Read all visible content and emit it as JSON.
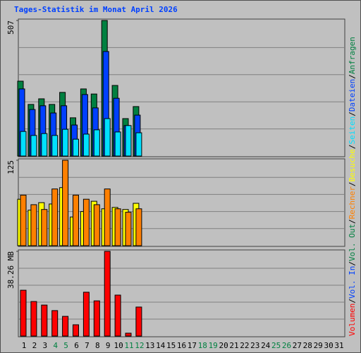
{
  "chart_data": {
    "type": "bar",
    "title": "Tages-Statistik im Monat April 2026",
    "categories": [
      "1",
      "2",
      "3",
      "4",
      "5",
      "6",
      "7",
      "8",
      "9",
      "10",
      "11",
      "12",
      "13",
      "14",
      "15",
      "16",
      "17",
      "18",
      "19",
      "20",
      "21",
      "22",
      "23",
      "24",
      "25",
      "26",
      "27",
      "28",
      "29",
      "30",
      "31"
    ],
    "highlight_categories": [
      "4",
      "5",
      "11",
      "12",
      "18",
      "19",
      "25",
      "26"
    ],
    "highlight_color": "#008040",
    "grid": true,
    "grid_divisions": 5,
    "legend_separator": "/",
    "panels": [
      {
        "ylim": [
          0,
          507
        ],
        "yticks": [
          507
        ],
        "series": [
          {
            "name": "Anfragen",
            "color": "#008040",
            "values": [
              280,
              193,
              214,
              193,
              238,
              143,
              251,
              232,
              507,
              264,
              140,
              185,
              null,
              null,
              null,
              null,
              null,
              null,
              null,
              null,
              null,
              null,
              null,
              null,
              null,
              null,
              null,
              null,
              null,
              null,
              null
            ]
          },
          {
            "name": "Dateien",
            "color": "#0040ff",
            "values": [
              251,
              174,
              188,
              161,
              188,
              116,
              230,
              180,
              391,
              216,
              114,
              153,
              null,
              null,
              null,
              null,
              null,
              null,
              null,
              null,
              null,
              null,
              null,
              null,
              null,
              null,
              null,
              null,
              null,
              null,
              null
            ]
          },
          {
            "name": "Seiten",
            "color": "#00e0ff",
            "values": [
              92,
              77,
              84,
              77,
              100,
              63,
              82,
              98,
              140,
              90,
              114,
              87,
              null,
              null,
              null,
              null,
              null,
              null,
              null,
              null,
              null,
              null,
              null,
              null,
              null,
              null,
              null,
              null,
              null,
              null,
              null
            ]
          }
        ]
      },
      {
        "ylim": [
          0,
          125
        ],
        "yticks": [
          125
        ],
        "series": [
          {
            "name": "Besuche",
            "color": "#ffff00",
            "values": [
              68,
              52,
              63,
              61,
              85,
              42,
              50,
              65,
              54,
              56,
              53,
              62,
              null,
              null,
              null,
              null,
              null,
              null,
              null,
              null,
              null,
              null,
              null,
              null,
              null,
              null,
              null,
              null,
              null,
              null,
              null
            ]
          },
          {
            "name": "Rechner",
            "color": "#ff8000",
            "values": [
              74,
              60,
              53,
              83,
              125,
              74,
              68,
              60,
              83,
              54,
              49,
              54,
              null,
              null,
              null,
              null,
              null,
              null,
              null,
              null,
              null,
              null,
              null,
              null,
              null,
              null,
              null,
              null,
              null,
              null,
              null
            ]
          }
        ]
      },
      {
        "ylim": [
          0,
          38.26
        ],
        "yticks": [
          {
            "value": 38.26,
            "label": "38.26 MB"
          }
        ],
        "series": [
          {
            "name": "Vol. Out",
            "color": "#008040",
            "values": [
              null,
              null,
              null,
              null,
              null,
              null,
              null,
              null,
              null,
              null,
              null,
              null,
              null,
              null,
              null,
              null,
              null,
              null,
              null,
              null,
              null,
              null,
              null,
              null,
              null,
              null,
              null,
              null,
              null,
              null,
              null
            ]
          },
          {
            "name": "Vol. In",
            "color": "#0040ff",
            "values": [
              null,
              null,
              null,
              null,
              null,
              null,
              null,
              null,
              null,
              null,
              null,
              null,
              null,
              null,
              null,
              null,
              null,
              null,
              null,
              null,
              null,
              null,
              null,
              null,
              null,
              null,
              null,
              null,
              null,
              null,
              null
            ]
          },
          {
            "name": "Volumen",
            "color": "#ff0000",
            "values": [
              20.7,
              15.6,
              14.0,
              11.5,
              8.9,
              5.1,
              19.8,
              15.9,
              38.26,
              18.5,
              1.3,
              13.1,
              null,
              null,
              null,
              null,
              null,
              null,
              null,
              null,
              null,
              null,
              null,
              null,
              null,
              null,
              null,
              null,
              null,
              null,
              null
            ]
          }
        ]
      }
    ]
  }
}
